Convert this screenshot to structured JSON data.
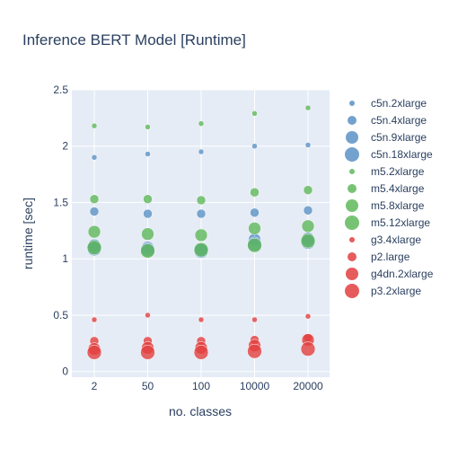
{
  "chart_data": {
    "type": "scatter",
    "title": "Inference BERT Model [Runtime]",
    "xlabel": "no. classes",
    "ylabel": "runtime [sec]",
    "categories": [
      "2",
      "50",
      "100",
      "10000",
      "20000"
    ],
    "ylim": [
      -0.05,
      2.5
    ],
    "yticks": [
      0,
      0.5,
      1,
      1.5,
      2,
      2.5
    ],
    "ytick_labels": [
      "0",
      "0.5",
      "1",
      "1.5",
      "2",
      "2.5"
    ],
    "grid": true,
    "legend_position": "right",
    "series": [
      {
        "name": "c5n.2xlarge",
        "color": "#5b92c6",
        "size": "small",
        "values": [
          1.9,
          1.93,
          1.95,
          2.0,
          2.01
        ]
      },
      {
        "name": "c5n.4xlarge",
        "color": "#5b92c6",
        "size": "medium",
        "values": [
          1.42,
          1.4,
          1.4,
          1.41,
          1.43
        ]
      },
      {
        "name": "c5n.9xlarge",
        "color": "#5b92c6",
        "size": "large",
        "values": [
          1.12,
          1.1,
          1.09,
          1.17,
          1.18
        ]
      },
      {
        "name": "c5n.18xlarge",
        "color": "#5b92c6",
        "size": "xlarge",
        "values": [
          1.09,
          1.08,
          1.07,
          1.13,
          1.15
        ]
      },
      {
        "name": "m5.2xlarge",
        "color": "#5fb85a",
        "size": "small",
        "values": [
          2.18,
          2.17,
          2.2,
          2.29,
          2.34
        ]
      },
      {
        "name": "m5.4xlarge",
        "color": "#5fb85a",
        "size": "medium",
        "values": [
          1.53,
          1.53,
          1.52,
          1.59,
          1.61
        ]
      },
      {
        "name": "m5.8xlarge",
        "color": "#5fb85a",
        "size": "large",
        "values": [
          1.24,
          1.22,
          1.21,
          1.27,
          1.29
        ]
      },
      {
        "name": "m5.12xlarge",
        "color": "#5fb85a",
        "size": "xlarge",
        "values": [
          1.1,
          1.07,
          1.08,
          1.12,
          1.16
        ]
      },
      {
        "name": "g3.4xlarge",
        "color": "#e2403f",
        "size": "small",
        "values": [
          0.46,
          0.5,
          0.46,
          0.46,
          0.49
        ]
      },
      {
        "name": "p2.large",
        "color": "#e2403f",
        "size": "medium",
        "values": [
          0.27,
          0.27,
          0.27,
          0.28,
          0.3
        ]
      },
      {
        "name": "g4dn.2xlarge",
        "color": "#e2403f",
        "size": "large",
        "values": [
          0.2,
          0.21,
          0.21,
          0.23,
          0.28
        ]
      },
      {
        "name": "p3.2xlarge",
        "color": "#e2403f",
        "size": "xlarge",
        "values": [
          0.17,
          0.17,
          0.17,
          0.18,
          0.2
        ]
      }
    ]
  }
}
